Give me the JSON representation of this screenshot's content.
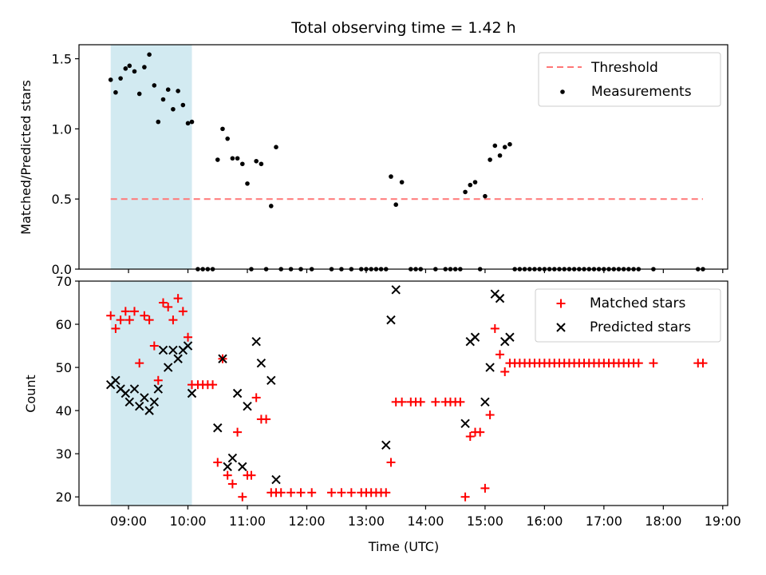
{
  "chart_data": {
    "title": "Total observing time = 1.42 h",
    "shaded_region": {
      "start": "08:42",
      "end": "10:04",
      "color": "#add8e6"
    },
    "x_axis": {
      "label": "Time (UTC)",
      "ticks": [
        "09:00",
        "10:00",
        "11:00",
        "12:00",
        "13:00",
        "14:00",
        "15:00",
        "16:00",
        "17:00",
        "18:00",
        "19:00"
      ],
      "range": [
        "08:10",
        "19:05"
      ]
    },
    "top": {
      "type": "scatter",
      "ylabel": "Matched/Predicted stars",
      "ylim": [
        0,
        1.6
      ],
      "yticks": [
        "0.0",
        "0.5",
        "1.0",
        "1.5"
      ],
      "threshold": {
        "name": "Threshold",
        "value": 0.5,
        "x_start": "08:42",
        "x_end": "18:40",
        "color": "#ff7777"
      },
      "series_name": "Measurements",
      "legend_position": "upper-right",
      "points": [
        [
          "08:42",
          1.35
        ],
        [
          "08:47",
          1.26
        ],
        [
          "08:52",
          1.36
        ],
        [
          "08:57",
          1.43
        ],
        [
          "09:01",
          1.45
        ],
        [
          "09:06",
          1.41
        ],
        [
          "09:11",
          1.25
        ],
        [
          "09:16",
          1.44
        ],
        [
          "09:21",
          1.53
        ],
        [
          "09:26",
          1.31
        ],
        [
          "09:30",
          1.05
        ],
        [
          "09:35",
          1.21
        ],
        [
          "09:40",
          1.28
        ],
        [
          "09:45",
          1.14
        ],
        [
          "09:50",
          1.27
        ],
        [
          "09:55",
          1.17
        ],
        [
          "10:00",
          1.04
        ],
        [
          "10:04",
          1.05
        ],
        [
          "10:10",
          0
        ],
        [
          "10:15",
          0
        ],
        [
          "10:20",
          0
        ],
        [
          "10:25",
          0
        ],
        [
          "10:30",
          0.78
        ],
        [
          "10:35",
          1.0
        ],
        [
          "10:40",
          0.93
        ],
        [
          "10:45",
          0.79
        ],
        [
          "10:50",
          0.79
        ],
        [
          "10:55",
          0.75
        ],
        [
          "11:00",
          0.61
        ],
        [
          "11:04",
          0
        ],
        [
          "11:09",
          0.77
        ],
        [
          "11:14",
          0.75
        ],
        [
          "11:19",
          0
        ],
        [
          "11:24",
          0.45
        ],
        [
          "11:29",
          0.87
        ],
        [
          "11:34",
          0
        ],
        [
          "11:44",
          0
        ],
        [
          "11:54",
          0
        ],
        [
          "12:05",
          0
        ],
        [
          "12:25",
          0
        ],
        [
          "12:35",
          0
        ],
        [
          "12:45",
          0
        ],
        [
          "12:55",
          0
        ],
        [
          "13:00",
          0
        ],
        [
          "13:05",
          0
        ],
        [
          "13:10",
          0
        ],
        [
          "13:15",
          0
        ],
        [
          "13:20",
          0
        ],
        [
          "13:25",
          0.66
        ],
        [
          "13:30",
          0.46
        ],
        [
          "13:36",
          0.62
        ],
        [
          "13:45",
          0
        ],
        [
          "13:50",
          0
        ],
        [
          "13:55",
          0
        ],
        [
          "14:10",
          0
        ],
        [
          "14:20",
          0
        ],
        [
          "14:25",
          0
        ],
        [
          "14:30",
          0
        ],
        [
          "14:35",
          0
        ],
        [
          "14:40",
          0.55
        ],
        [
          "14:45",
          0.6
        ],
        [
          "14:50",
          0.62
        ],
        [
          "14:55",
          0
        ],
        [
          "15:00",
          0.52
        ],
        [
          "15:05",
          0.78
        ],
        [
          "15:10",
          0.88
        ],
        [
          "15:15",
          0.81
        ],
        [
          "15:20",
          0.87
        ],
        [
          "15:25",
          0.89
        ],
        [
          "15:30",
          0
        ],
        [
          "15:35",
          0
        ],
        [
          "15:40",
          0
        ],
        [
          "15:45",
          0
        ],
        [
          "15:50",
          0
        ],
        [
          "15:55",
          0
        ],
        [
          "16:00",
          0
        ],
        [
          "16:05",
          0
        ],
        [
          "16:10",
          0
        ],
        [
          "16:15",
          0
        ],
        [
          "16:20",
          0
        ],
        [
          "16:25",
          0
        ],
        [
          "16:30",
          0
        ],
        [
          "16:35",
          0
        ],
        [
          "16:40",
          0
        ],
        [
          "16:45",
          0
        ],
        [
          "16:50",
          0
        ],
        [
          "16:55",
          0
        ],
        [
          "17:00",
          0
        ],
        [
          "17:05",
          0
        ],
        [
          "17:10",
          0
        ],
        [
          "17:15",
          0
        ],
        [
          "17:20",
          0
        ],
        [
          "17:25",
          0
        ],
        [
          "17:30",
          0
        ],
        [
          "17:35",
          0
        ],
        [
          "17:50",
          0
        ],
        [
          "18:35",
          0
        ],
        [
          "18:40",
          0
        ]
      ]
    },
    "bottom": {
      "type": "scatter",
      "ylabel": "Count",
      "ylim": [
        18,
        70
      ],
      "yticks": [
        "20",
        "30",
        "40",
        "50",
        "60",
        "70"
      ],
      "legend_position": "upper-right",
      "series": [
        {
          "name": "Matched stars",
          "marker": "plus",
          "color": "#ff0000",
          "points": [
            [
              "08:42",
              62
            ],
            [
              "08:47",
              59
            ],
            [
              "08:52",
              61
            ],
            [
              "08:57",
              63
            ],
            [
              "09:01",
              61
            ],
            [
              "09:06",
              63
            ],
            [
              "09:11",
              51
            ],
            [
              "09:16",
              62
            ],
            [
              "09:21",
              61
            ],
            [
              "09:26",
              55
            ],
            [
              "09:30",
              47
            ],
            [
              "09:35",
              65
            ],
            [
              "09:40",
              64
            ],
            [
              "09:45",
              61
            ],
            [
              "09:50",
              66
            ],
            [
              "09:55",
              63
            ],
            [
              "10:00",
              57
            ],
            [
              "10:04",
              46
            ],
            [
              "10:10",
              46
            ],
            [
              "10:15",
              46
            ],
            [
              "10:20",
              46
            ],
            [
              "10:25",
              46
            ],
            [
              "10:30",
              28
            ],
            [
              "10:35",
              52
            ],
            [
              "10:40",
              25
            ],
            [
              "10:45",
              23
            ],
            [
              "10:50",
              35
            ],
            [
              "10:55",
              20
            ],
            [
              "11:00",
              25
            ],
            [
              "11:04",
              25
            ],
            [
              "11:09",
              43
            ],
            [
              "11:14",
              38
            ],
            [
              "11:19",
              38
            ],
            [
              "11:24",
              21
            ],
            [
              "11:29",
              21
            ],
            [
              "11:34",
              21
            ],
            [
              "11:44",
              21
            ],
            [
              "11:54",
              21
            ],
            [
              "12:05",
              21
            ],
            [
              "12:25",
              21
            ],
            [
              "12:35",
              21
            ],
            [
              "12:45",
              21
            ],
            [
              "12:55",
              21
            ],
            [
              "13:00",
              21
            ],
            [
              "13:05",
              21
            ],
            [
              "13:10",
              21
            ],
            [
              "13:15",
              21
            ],
            [
              "13:20",
              21
            ],
            [
              "13:25",
              28
            ],
            [
              "13:30",
              42
            ],
            [
              "13:36",
              42
            ],
            [
              "13:45",
              42
            ],
            [
              "13:50",
              42
            ],
            [
              "13:55",
              42
            ],
            [
              "14:10",
              42
            ],
            [
              "14:20",
              42
            ],
            [
              "14:25",
              42
            ],
            [
              "14:30",
              42
            ],
            [
              "14:35",
              42
            ],
            [
              "14:40",
              20
            ],
            [
              "14:45",
              34
            ],
            [
              "14:50",
              35
            ],
            [
              "14:55",
              35
            ],
            [
              "15:00",
              22
            ],
            [
              "15:05",
              39
            ],
            [
              "15:10",
              59
            ],
            [
              "15:15",
              53
            ],
            [
              "15:20",
              49
            ],
            [
              "15:25",
              51
            ],
            [
              "15:30",
              51
            ],
            [
              "15:35",
              51
            ],
            [
              "15:40",
              51
            ],
            [
              "15:45",
              51
            ],
            [
              "15:50",
              51
            ],
            [
              "15:55",
              51
            ],
            [
              "16:00",
              51
            ],
            [
              "16:05",
              51
            ],
            [
              "16:10",
              51
            ],
            [
              "16:15",
              51
            ],
            [
              "16:20",
              51
            ],
            [
              "16:25",
              51
            ],
            [
              "16:30",
              51
            ],
            [
              "16:35",
              51
            ],
            [
              "16:40",
              51
            ],
            [
              "16:45",
              51
            ],
            [
              "16:50",
              51
            ],
            [
              "16:55",
              51
            ],
            [
              "17:00",
              51
            ],
            [
              "17:05",
              51
            ],
            [
              "17:10",
              51
            ],
            [
              "17:15",
              51
            ],
            [
              "17:20",
              51
            ],
            [
              "17:25",
              51
            ],
            [
              "17:30",
              51
            ],
            [
              "17:35",
              51
            ],
            [
              "17:50",
              51
            ],
            [
              "18:35",
              51
            ],
            [
              "18:40",
              51
            ]
          ]
        },
        {
          "name": "Predicted stars",
          "marker": "x",
          "color": "#000000",
          "points": [
            [
              "08:42",
              46
            ],
            [
              "08:47",
              47
            ],
            [
              "08:52",
              45
            ],
            [
              "08:57",
              44
            ],
            [
              "09:01",
              42
            ],
            [
              "09:06",
              45
            ],
            [
              "09:11",
              41
            ],
            [
              "09:16",
              43
            ],
            [
              "09:21",
              40
            ],
            [
              "09:26",
              42
            ],
            [
              "09:30",
              45
            ],
            [
              "09:35",
              54
            ],
            [
              "09:40",
              50
            ],
            [
              "09:45",
              54
            ],
            [
              "09:50",
              52
            ],
            [
              "09:55",
              54
            ],
            [
              "10:00",
              55
            ],
            [
              "10:04",
              44
            ],
            [
              "10:30",
              36
            ],
            [
              "10:35",
              52
            ],
            [
              "10:40",
              27
            ],
            [
              "10:45",
              29
            ],
            [
              "10:50",
              44
            ],
            [
              "10:55",
              27
            ],
            [
              "11:00",
              41
            ],
            [
              "11:09",
              56
            ],
            [
              "11:14",
              51
            ],
            [
              "11:24",
              47
            ],
            [
              "11:29",
              24
            ],
            [
              "13:20",
              32
            ],
            [
              "13:25",
              61
            ],
            [
              "13:30",
              68
            ],
            [
              "14:40",
              37
            ],
            [
              "14:45",
              56
            ],
            [
              "14:50",
              57
            ],
            [
              "15:00",
              42
            ],
            [
              "15:05",
              50
            ],
            [
              "15:10",
              67
            ],
            [
              "15:15",
              66
            ],
            [
              "15:20",
              56
            ],
            [
              "15:25",
              57
            ]
          ]
        }
      ]
    }
  }
}
